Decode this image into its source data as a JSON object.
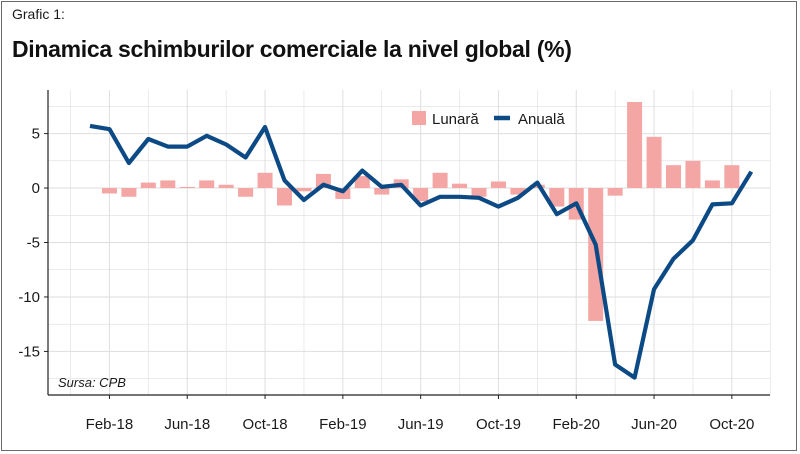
{
  "header": {
    "figure_label": "Grafic 1:",
    "title": "Dinamica schimburilor comerciale la nivel global (%)"
  },
  "source": "Sursa: CPB",
  "colors": {
    "bar": "#f4a6a4",
    "line": "#0c4a86",
    "grid": "#dedede",
    "axis": "#222222"
  },
  "chart_data": {
    "type": "bar+line",
    "x_tick_labels": [
      "Feb-18",
      "Jun-18",
      "Oct-18",
      "Feb-19",
      "Jun-19",
      "Oct-19",
      "Feb-20",
      "Jun-20",
      "Oct-20"
    ],
    "ylim": [
      -19,
      9
    ],
    "y_ticks": [
      5,
      0,
      -5,
      -10,
      -15
    ],
    "y_tick_labels": [
      "5",
      "0",
      "-5",
      "-10",
      "-15"
    ],
    "grid": true,
    "legend_position": "top-center",
    "x": [
      "Jan-18",
      "Feb-18",
      "Mar-18",
      "Apr-18",
      "May-18",
      "Jun-18",
      "Jul-18",
      "Aug-18",
      "Sep-18",
      "Oct-18",
      "Nov-18",
      "Dec-18",
      "Jan-19",
      "Feb-19",
      "Mar-19",
      "Apr-19",
      "May-19",
      "Jun-19",
      "Jul-19",
      "Aug-19",
      "Sep-19",
      "Oct-19",
      "Nov-19",
      "Dec-19",
      "Jan-20",
      "Feb-20",
      "Mar-20",
      "Apr-20",
      "May-20",
      "Jun-20",
      "Jul-20",
      "Aug-20",
      "Sep-20",
      "Oct-20",
      "Nov-20"
    ],
    "series": [
      {
        "name": "Lunară",
        "kind": "bar",
        "values": [
          0.0,
          -0.5,
          -0.8,
          0.5,
          0.7,
          0.1,
          0.7,
          0.3,
          -0.8,
          1.4,
          -1.6,
          -0.3,
          1.3,
          -1.0,
          1.1,
          -0.6,
          0.8,
          -1.2,
          1.4,
          0.4,
          -0.8,
          0.6,
          -0.6,
          0.3,
          -1.7,
          -2.9,
          -12.2,
          -0.7,
          7.9,
          4.7,
          2.1,
          2.5,
          0.7,
          2.1,
          0.0
        ]
      },
      {
        "name": "Anuală",
        "kind": "line",
        "values": [
          5.7,
          5.4,
          2.3,
          4.5,
          3.8,
          3.8,
          4.8,
          4.0,
          2.8,
          5.6,
          0.7,
          -1.1,
          0.3,
          -0.3,
          1.6,
          0.1,
          0.3,
          -1.6,
          -0.8,
          -0.8,
          -0.9,
          -1.7,
          -0.9,
          0.5,
          -2.4,
          -1.4,
          -5.2,
          -16.2,
          -17.4,
          -9.3,
          -6.5,
          -4.8,
          -1.5,
          -1.4,
          1.5
        ]
      }
    ]
  }
}
